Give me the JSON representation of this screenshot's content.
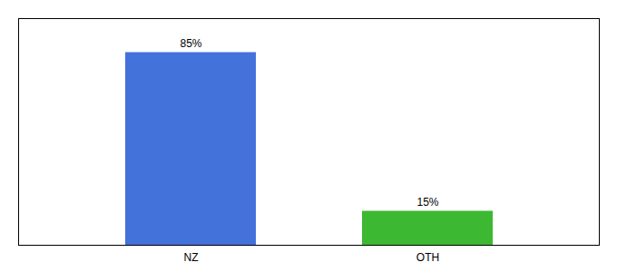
{
  "chart_data": {
    "type": "bar",
    "categories": [
      "NZ",
      "OTH"
    ],
    "values": [
      85,
      15
    ],
    "value_labels": [
      "85%",
      "15%"
    ],
    "data_labels": true,
    "colors": [
      "#4472db",
      "#3cb832"
    ],
    "ylim": [
      0,
      100
    ],
    "tick_labels": "x"
  }
}
